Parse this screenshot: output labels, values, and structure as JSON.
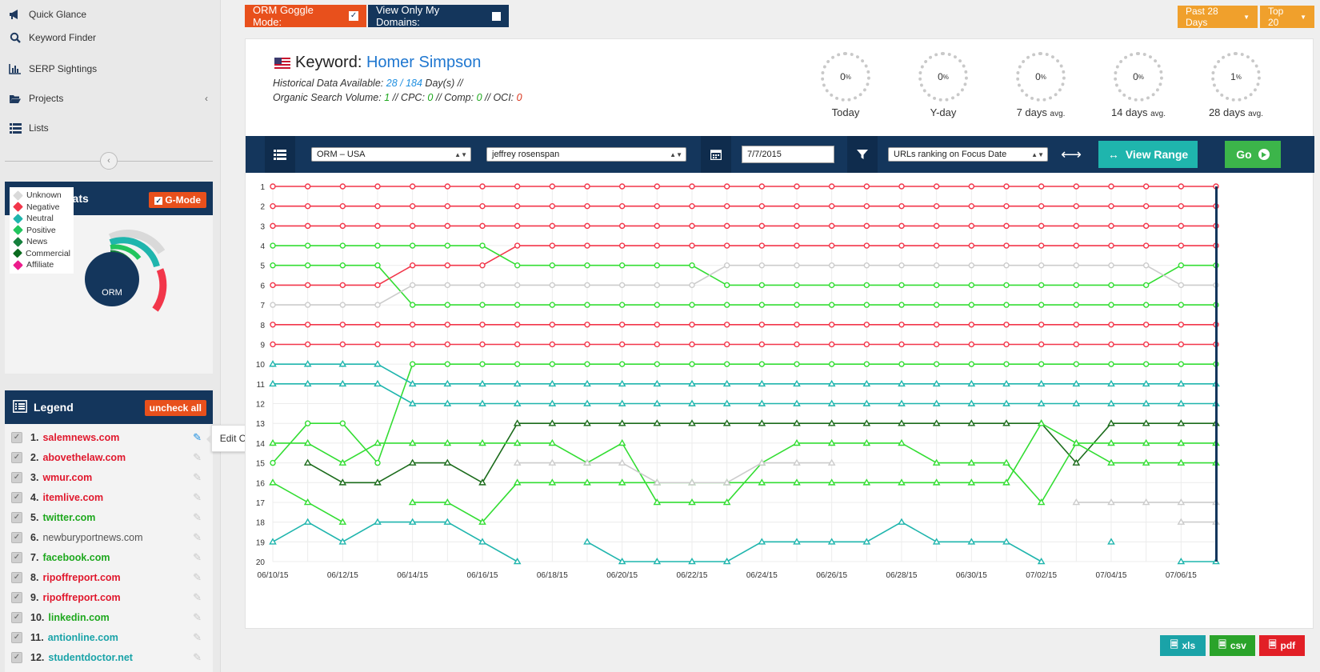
{
  "sidebar": {
    "nav": [
      {
        "label": "Quick Glance",
        "icon": "megaphone-icon"
      },
      {
        "label": "Keyword Finder",
        "icon": "magnify-icon"
      },
      {
        "label": "SERP Sightings",
        "icon": "bar-chart-icon"
      },
      {
        "label": "Projects",
        "icon": "folder-open-icon"
      },
      {
        "label": "Lists",
        "icon": "list-icon"
      }
    ],
    "orm_stats": {
      "title": "ORM Stats",
      "gmode_label": "G-Mode",
      "center_label": "ORM",
      "categories": [
        {
          "label": "Unknown",
          "color": "#d9d9d9"
        },
        {
          "label": "Negative",
          "color": "#f2364a"
        },
        {
          "label": "Neutral",
          "color": "#1fb5ad"
        },
        {
          "label": "Positive",
          "color": "#22c55e"
        },
        {
          "label": "News",
          "color": "#15803d"
        },
        {
          "label": "Commercial",
          "color": "#0b6b1f"
        },
        {
          "label": "Affiliate",
          "color": "#ec1c8c"
        }
      ]
    },
    "legend": {
      "title": "Legend",
      "uncheck_label": "uncheck all",
      "tooltip": "Edit ORM Tag",
      "items": [
        {
          "num": "1.",
          "domain": "salemnews.com",
          "color": "#e0182d"
        },
        {
          "num": "2.",
          "domain": "abovethelaw.com",
          "color": "#e0182d"
        },
        {
          "num": "3.",
          "domain": "wmur.com",
          "color": "#e0182d"
        },
        {
          "num": "4.",
          "domain": "itemlive.com",
          "color": "#e0182d"
        },
        {
          "num": "5.",
          "domain": "twitter.com",
          "color": "#1ea81e"
        },
        {
          "num": "6.",
          "domain": "newburyportnews.com",
          "color": "#555555"
        },
        {
          "num": "7.",
          "domain": "facebook.com",
          "color": "#1ea81e"
        },
        {
          "num": "8.",
          "domain": "ripoffreport.com",
          "color": "#e0182d"
        },
        {
          "num": "9.",
          "domain": "ripoffreport.com",
          "color": "#e0182d"
        },
        {
          "num": "10.",
          "domain": "linkedin.com",
          "color": "#1ea81e"
        },
        {
          "num": "11.",
          "domain": "antionline.com",
          "color": "#1aa3a8"
        },
        {
          "num": "12.",
          "domain": "studentdoctor.net",
          "color": "#1aa3a8"
        }
      ]
    }
  },
  "top": {
    "orm_mode_label": "ORM Goggle Mode:",
    "view_domains_label": "View Only My Domains:",
    "range_label": "Past 28 Days",
    "top_label": "Top 20"
  },
  "keyword": {
    "prefix": "Keyword:",
    "name": "Homer Simpson",
    "hist_label": "Historical Data Available:",
    "hist_a": "28",
    "hist_sep": " / ",
    "hist_b": "184",
    "hist_suffix": "Day(s) //",
    "osv_label": "Organic Search Volume:",
    "osv": "1",
    "cpc_label": "// CPC:",
    "cpc": "0",
    "comp_label": "// Comp:",
    "comp": "0",
    "oci_label": "// OCI:",
    "oci": "0"
  },
  "gauges": [
    {
      "value": "0",
      "unit": "%",
      "label": "Today",
      "sub": ""
    },
    {
      "value": "0",
      "unit": "%",
      "label": "Y-day",
      "sub": ""
    },
    {
      "value": "0",
      "unit": "%",
      "label": "7 days",
      "sub": "avg."
    },
    {
      "value": "0",
      "unit": "%",
      "label": "14 days",
      "sub": "avg."
    },
    {
      "value": "1",
      "unit": "%",
      "label": "28 days",
      "sub": "avg."
    }
  ],
  "toolbar": {
    "project_select": "ORM – USA",
    "keyword_select": "jeffrey rosenspan",
    "date_value": "7/7/2015",
    "filter_select": "URLs ranking on Focus Date",
    "view_range_label": "View Range",
    "go_label": "Go"
  },
  "export": {
    "xls": "xls",
    "csv": "csv",
    "pdf": "pdf"
  },
  "chart_data": {
    "type": "line",
    "y_ticks": [
      1,
      2,
      3,
      4,
      5,
      6,
      7,
      8,
      9,
      10,
      11,
      12,
      13,
      14,
      15,
      16,
      17,
      18,
      19,
      20
    ],
    "ylim": [
      1,
      20
    ],
    "y_inverted": true,
    "x_tick_labels": [
      "06/10/15",
      "06/12/15",
      "06/14/15",
      "06/16/15",
      "06/18/15",
      "06/20/15",
      "06/22/15",
      "06/24/15",
      "06/26/15",
      "06/28/15",
      "06/30/15",
      "07/02/15",
      "07/04/15",
      "07/06/15"
    ],
    "days": 28,
    "grid": true,
    "series": [
      {
        "color": "#f2364a",
        "marker": "circle",
        "values": [
          1,
          1,
          1,
          1,
          1,
          1,
          1,
          1,
          1,
          1,
          1,
          1,
          1,
          1,
          1,
          1,
          1,
          1,
          1,
          1,
          1,
          1,
          1,
          1,
          1,
          1,
          1,
          1
        ]
      },
      {
        "color": "#f2364a",
        "marker": "circle",
        "values": [
          2,
          2,
          2,
          2,
          2,
          2,
          2,
          2,
          2,
          2,
          2,
          2,
          2,
          2,
          2,
          2,
          2,
          2,
          2,
          2,
          2,
          2,
          2,
          2,
          2,
          2,
          2,
          2
        ]
      },
      {
        "color": "#f2364a",
        "marker": "circle",
        "values": [
          3,
          3,
          3,
          3,
          3,
          3,
          3,
          3,
          3,
          3,
          3,
          3,
          3,
          3,
          3,
          3,
          3,
          3,
          3,
          3,
          3,
          3,
          3,
          3,
          3,
          3,
          3,
          3
        ]
      },
      {
        "color": "#f2364a",
        "marker": "circle",
        "values": [
          6,
          6,
          6,
          6,
          5,
          5,
          5,
          4,
          4,
          4,
          4,
          4,
          4,
          4,
          4,
          4,
          4,
          4,
          4,
          4,
          4,
          4,
          4,
          4,
          4,
          4,
          4,
          4
        ]
      },
      {
        "color": "#33dd33",
        "marker": "circle",
        "values": [
          4,
          4,
          4,
          4,
          4,
          4,
          4,
          5,
          5,
          5,
          5,
          5,
          5,
          6,
          6,
          6,
          6,
          6,
          6,
          6,
          6,
          6,
          6,
          6,
          6,
          6,
          5,
          5
        ]
      },
      {
        "color": "#33dd33",
        "marker": "circle",
        "values": [
          5,
          5,
          5,
          5,
          7,
          7,
          7,
          7,
          7,
          7,
          7,
          7,
          7,
          7,
          7,
          7,
          7,
          7,
          7,
          7,
          7,
          7,
          7,
          7,
          7,
          7,
          7,
          7
        ]
      },
      {
        "color": "#cccccc",
        "marker": "circle",
        "values": [
          7,
          7,
          7,
          7,
          6,
          6,
          6,
          6,
          6,
          6,
          6,
          6,
          6,
          5,
          5,
          5,
          5,
          5,
          5,
          5,
          5,
          5,
          5,
          5,
          5,
          5,
          6,
          6
        ]
      },
      {
        "color": "#f2364a",
        "marker": "circle",
        "values": [
          8,
          8,
          8,
          8,
          8,
          8,
          8,
          8,
          8,
          8,
          8,
          8,
          8,
          8,
          8,
          8,
          8,
          8,
          8,
          8,
          8,
          8,
          8,
          8,
          8,
          8,
          8,
          8
        ]
      },
      {
        "color": "#f2364a",
        "marker": "circle",
        "values": [
          9,
          9,
          9,
          9,
          9,
          9,
          9,
          9,
          9,
          9,
          9,
          9,
          9,
          9,
          9,
          9,
          9,
          9,
          9,
          9,
          9,
          9,
          9,
          9,
          9,
          9,
          9,
          9
        ]
      },
      {
        "color": "#33dd33",
        "marker": "circle",
        "values": [
          15,
          13,
          13,
          15,
          10,
          10,
          10,
          10,
          10,
          10,
          10,
          10,
          10,
          10,
          10,
          10,
          10,
          10,
          10,
          10,
          10,
          10,
          10,
          10,
          10,
          10,
          10,
          10
        ]
      },
      {
        "color": "#1fb5ad",
        "marker": "triangle",
        "values": [
          10,
          10,
          10,
          10,
          11,
          11,
          11,
          11,
          11,
          11,
          11,
          11,
          11,
          11,
          11,
          11,
          11,
          11,
          11,
          11,
          11,
          11,
          11,
          11,
          11,
          11,
          11,
          11
        ]
      },
      {
        "color": "#1fb5ad",
        "marker": "triangle",
        "values": [
          11,
          11,
          11,
          11,
          12,
          12,
          12,
          12,
          12,
          12,
          12,
          12,
          12,
          12,
          12,
          12,
          12,
          12,
          12,
          12,
          12,
          12,
          12,
          12,
          12,
          12,
          12,
          12
        ]
      },
      {
        "color": "#1b6b1b",
        "marker": "triangle",
        "values": [
          null,
          15,
          16,
          16,
          15,
          15,
          16,
          13,
          13,
          13,
          13,
          13,
          13,
          13,
          13,
          13,
          13,
          13,
          13,
          13,
          13,
          13,
          13,
          15,
          13,
          13,
          13,
          13
        ]
      },
      {
        "color": "#33dd33",
        "marker": "triangle",
        "values": [
          14,
          14,
          15,
          14,
          14,
          14,
          14,
          14,
          14,
          15,
          14,
          17,
          17,
          17,
          15,
          14,
          14,
          14,
          14,
          15,
          15,
          15,
          17,
          14,
          15,
          15,
          15,
          15
        ]
      },
      {
        "color": "#33dd33",
        "marker": "triangle",
        "values": [
          16,
          17,
          18,
          null,
          17,
          17,
          18,
          16,
          16,
          16,
          16,
          16,
          16,
          16,
          16,
          16,
          16,
          16,
          16,
          16,
          16,
          16,
          13,
          14,
          14,
          14,
          14,
          14
        ]
      },
      {
        "color": "#cccccc",
        "marker": "triangle",
        "values": [
          null,
          null,
          null,
          null,
          null,
          null,
          null,
          15,
          15,
          15,
          15,
          16,
          16,
          16,
          15,
          15,
          15,
          null,
          null,
          null,
          null,
          null,
          null,
          17,
          17,
          17,
          17,
          17
        ]
      },
      {
        "color": "#cccccc",
        "marker": "triangle",
        "values": [
          null,
          null,
          null,
          null,
          null,
          null,
          null,
          null,
          null,
          null,
          null,
          null,
          null,
          null,
          null,
          null,
          null,
          null,
          null,
          null,
          null,
          null,
          null,
          null,
          null,
          null,
          18,
          18
        ]
      },
      {
        "color": "#1fb5ad",
        "marker": "triangle",
        "values": [
          19,
          18,
          19,
          18,
          18,
          18,
          19,
          20,
          null,
          19,
          20,
          20,
          20,
          20,
          19,
          19,
          19,
          19,
          18,
          19,
          19,
          19,
          20,
          null,
          19,
          null,
          20,
          20
        ]
      }
    ]
  }
}
